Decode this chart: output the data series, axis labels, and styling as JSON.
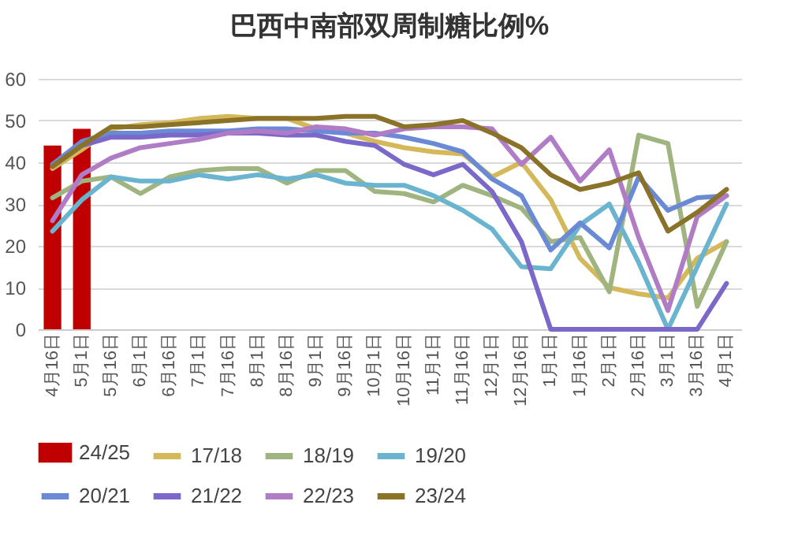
{
  "chart_data": {
    "type": "line",
    "title": "巴西中南部双周制糖比例%",
    "categories": [
      "4月16日",
      "5月1日",
      "5月16日",
      "6月1日",
      "6月16日",
      "7月1日",
      "7月16日",
      "8月1日",
      "8月16日",
      "9月1日",
      "9月16日",
      "10月1日",
      "10月16日",
      "11月1日",
      "11月16日",
      "12月1日",
      "12月16日",
      "1月1日",
      "1月16日",
      "2月1日",
      "2月16日",
      "3月1日",
      "3月16日",
      "4月1日"
    ],
    "series": [
      {
        "name": "24/25",
        "type": "bar",
        "color": "#c00000",
        "values": [
          44,
          48,
          null,
          null,
          null,
          null,
          null,
          null,
          null,
          null,
          null,
          null,
          null,
          null,
          null,
          null,
          null,
          null,
          null,
          null,
          null,
          null,
          null,
          null
        ]
      },
      {
        "name": "17/18",
        "color": "#d4b85a",
        "values": [
          38.5,
          43,
          48,
          49,
          49.5,
          50.5,
          51,
          50.5,
          50.5,
          48,
          47,
          45,
          43.5,
          42.5,
          42,
          36.5,
          40,
          31,
          17,
          10,
          8.5,
          7.5,
          17,
          21
        ]
      },
      {
        "name": "18/19",
        "color": "#9fb47f",
        "values": [
          31.5,
          35.5,
          36.5,
          32.5,
          36.5,
          38,
          38.5,
          38.5,
          35,
          38,
          38,
          33,
          32.5,
          30.5,
          34.5,
          32,
          29,
          21,
          22,
          9,
          46.5,
          44.5,
          5.5,
          21
        ]
      },
      {
        "name": "19/20",
        "color": "#6ab4d0",
        "values": [
          23.5,
          31,
          36.5,
          35.5,
          35.5,
          37,
          36,
          37,
          36,
          37,
          35,
          34.5,
          34.5,
          32,
          28.5,
          24,
          15,
          14.5,
          25,
          30,
          16,
          0,
          15,
          30
        ]
      },
      {
        "name": "20/21",
        "color": "#6a8ad6",
        "values": [
          39.5,
          45,
          47,
          47,
          47.5,
          47.5,
          47.5,
          48,
          48,
          47.5,
          47,
          47,
          46,
          44.5,
          42.5,
          36,
          32,
          19,
          25.5,
          19.5,
          36.5,
          28.5,
          31.5,
          32
        ]
      },
      {
        "name": "21/22",
        "color": "#7b68c8",
        "values": [
          39,
          44,
          46,
          46,
          46.5,
          46.5,
          47,
          47,
          46.5,
          46.5,
          45,
          44,
          39.5,
          37,
          39.5,
          33,
          21,
          0,
          0,
          0,
          0,
          0,
          0,
          11
        ]
      },
      {
        "name": "22/23",
        "color": "#b07cc6",
        "values": [
          26,
          37,
          41,
          43.5,
          44.5,
          45.5,
          47,
          47.5,
          47,
          48.5,
          48,
          46.5,
          48,
          48.5,
          48.5,
          48,
          39.5,
          46,
          35.5,
          43,
          22,
          4.5,
          27,
          32
        ]
      },
      {
        "name": "23/24",
        "color": "#8a7228",
        "values": [
          39,
          44,
          48.5,
          48.5,
          49,
          49.5,
          50,
          50.5,
          50.5,
          50.5,
          51,
          51,
          48.5,
          49,
          50,
          47,
          43.5,
          37,
          33.5,
          35,
          37.5,
          23.5,
          28,
          33.5
        ]
      }
    ],
    "ylim": [
      0,
      60
    ],
    "yticks": [
      0,
      10,
      20,
      30,
      40,
      50,
      60
    ],
    "grid": "y",
    "legend": "bottom"
  }
}
